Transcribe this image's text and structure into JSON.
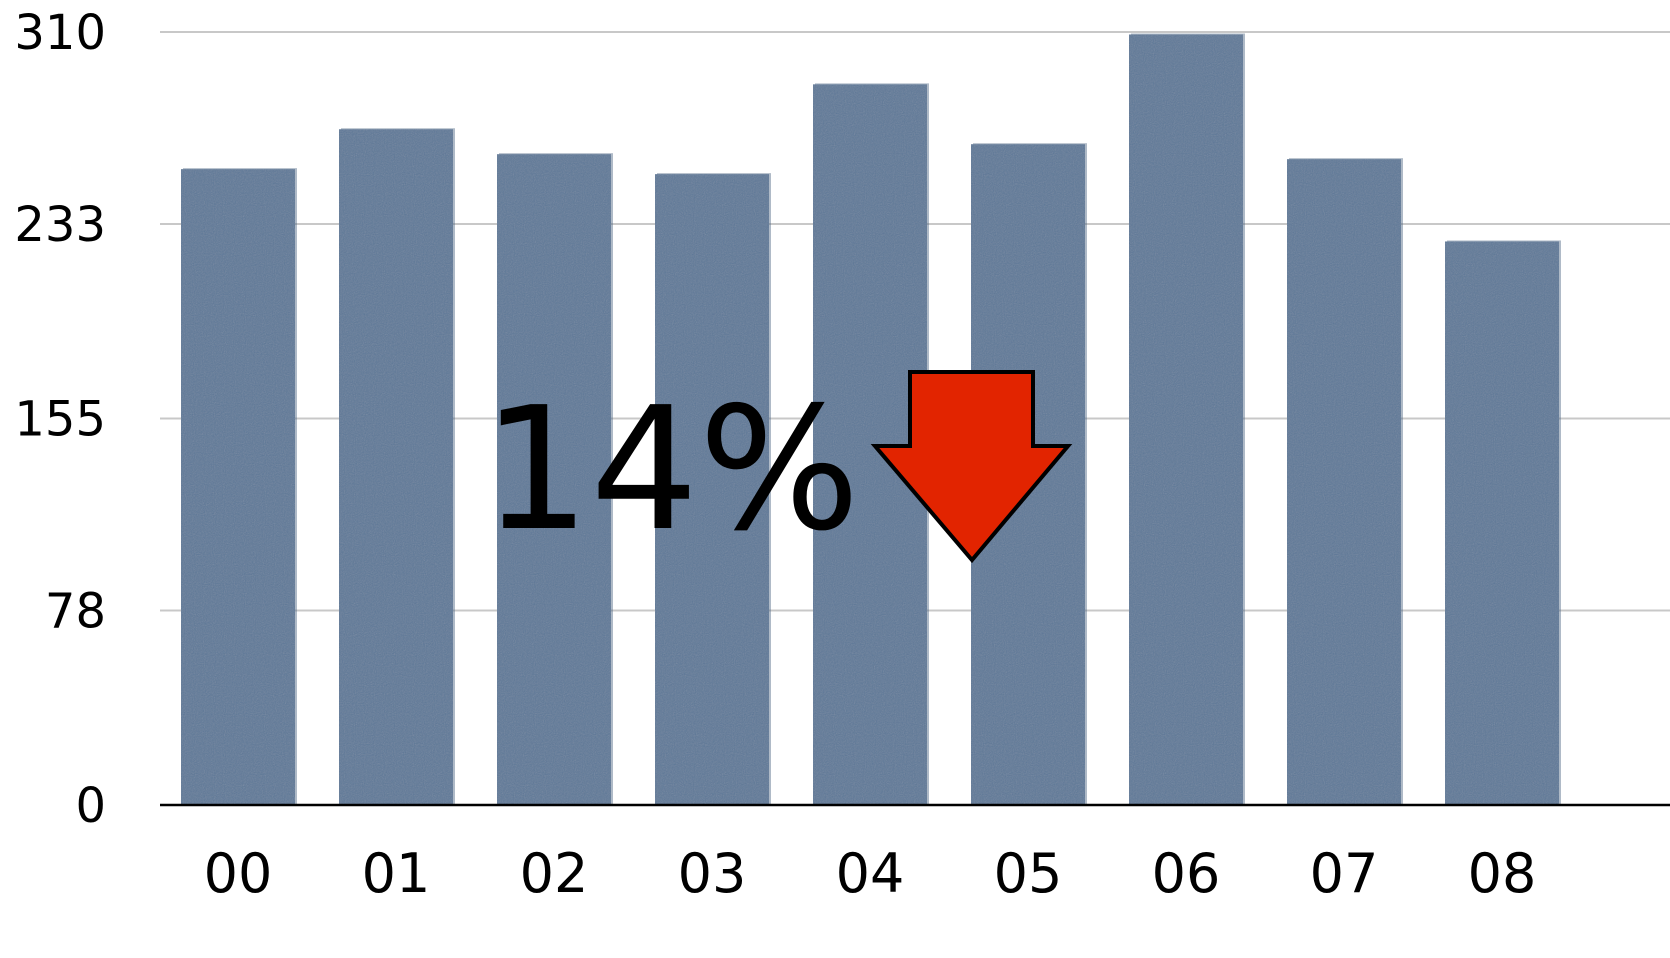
{
  "chart_data": {
    "type": "bar",
    "title": "",
    "xlabel": "",
    "ylabel": "",
    "categories": [
      "00",
      "01",
      "02",
      "03",
      "04",
      "05",
      "06",
      "07",
      "08"
    ],
    "values": [
      255,
      271,
      261,
      253,
      289,
      265,
      309,
      259,
      226
    ],
    "ylim": [
      0,
      310
    ],
    "yticks": [
      0,
      78,
      155,
      233,
      310
    ],
    "ytick_labels": [
      "0",
      "78",
      "155",
      "233",
      "310"
    ],
    "grid": true,
    "legend": "none",
    "colors": {
      "bar": "#5d7898",
      "bar_shadow": "#4e6682",
      "grid": "#c8c8c8",
      "axis": "#000000",
      "arrow": "#e22400",
      "arrow_outline": "#000000"
    },
    "annotation": {
      "text": "14%",
      "icon": "down-arrow-icon"
    }
  }
}
